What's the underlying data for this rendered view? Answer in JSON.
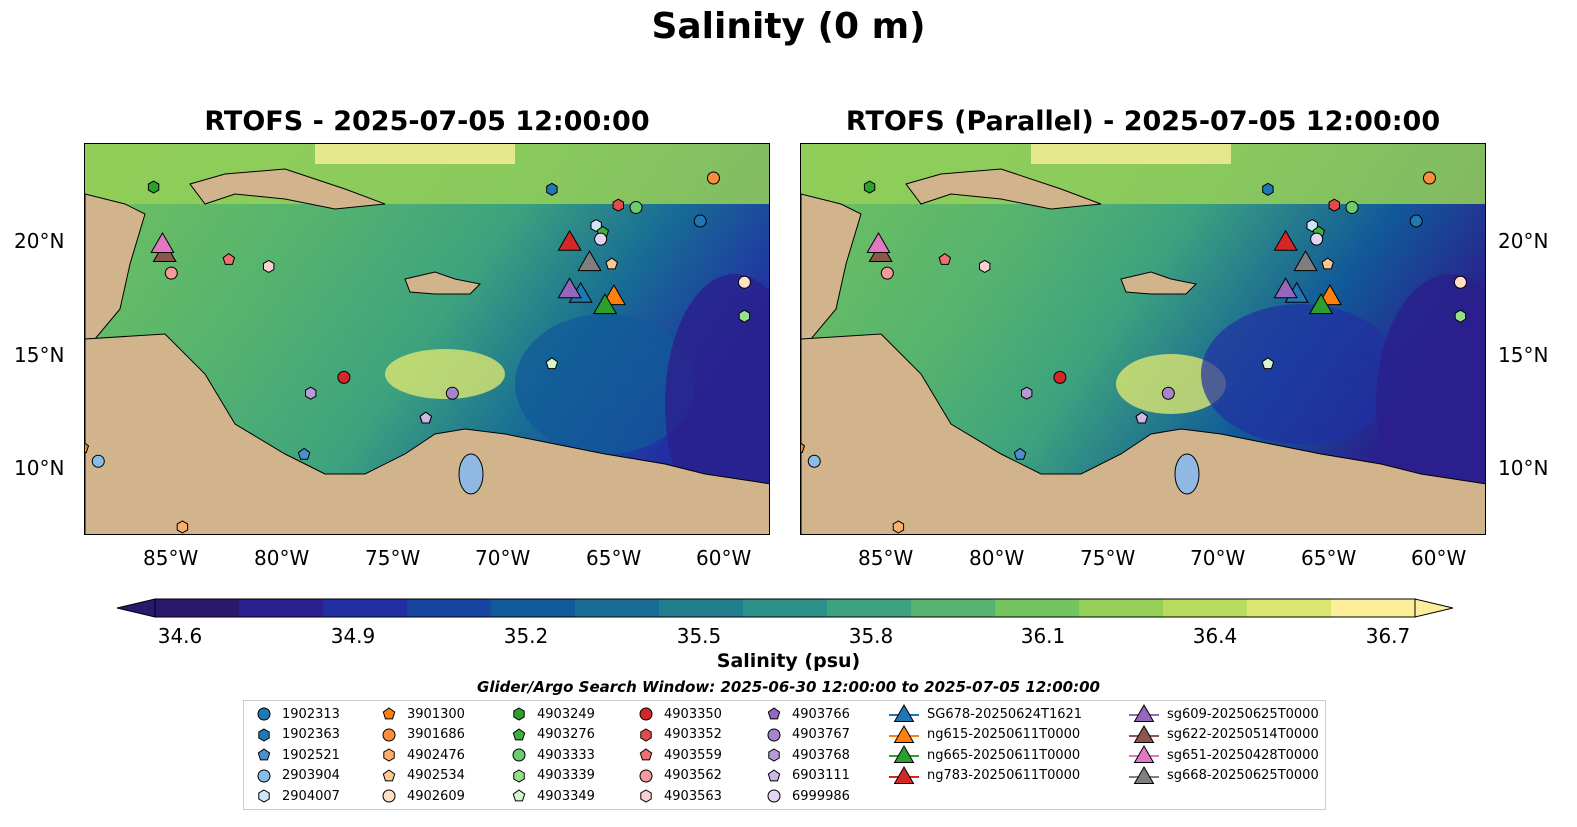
{
  "suptitle": "Salinity (0 m)",
  "panels": [
    {
      "title": "RTOFS - 2025-07-05 12:00:00"
    },
    {
      "title": "RTOFS (Parallel) - 2025-07-05 12:00:00"
    }
  ],
  "lon_ticks": [
    "85°W",
    "80°W",
    "75°W",
    "70°W",
    "65°W",
    "60°W"
  ],
  "lat_ticks": [
    "20°N",
    "15°N",
    "10°N"
  ],
  "colorbar": {
    "label": "Salinity (psu)",
    "ticks": [
      "34.6",
      "34.9",
      "35.2",
      "35.5",
      "35.8",
      "36.1",
      "36.4",
      "36.7"
    ],
    "colormap": "haline",
    "colors": [
      "#29186b",
      "#2a1f8c",
      "#212fa3",
      "#1545a1",
      "#115a99",
      "#176c95",
      "#217e8f",
      "#2d9089",
      "#3da27e",
      "#55b36f",
      "#73c35e",
      "#96d058",
      "#b9dc5f",
      "#dbe671",
      "#fdef9a"
    ]
  },
  "legend": {
    "title": "Glider/Argo Search Window: 2025-06-30 12:00:00 to 2025-07-05 12:00:00",
    "items": [
      {
        "label": "1902313",
        "color": "#1f77b4",
        "marker": "circle"
      },
      {
        "label": "1902363",
        "color": "#1f77b4",
        "marker": "hexagon"
      },
      {
        "label": "1902521",
        "color": "#4a90d0",
        "marker": "pentagon"
      },
      {
        "label": "2903904",
        "color": "#89bde6",
        "marker": "circle"
      },
      {
        "label": "2904007",
        "color": "#cfe6f7",
        "marker": "hexagon"
      },
      {
        "label": "3901300",
        "color": "#ff7f0e",
        "marker": "pentagon"
      },
      {
        "label": "3901686",
        "color": "#fd8d3c",
        "marker": "circle"
      },
      {
        "label": "4902476",
        "color": "#fdae6b",
        "marker": "hexagon"
      },
      {
        "label": "4902534",
        "color": "#fdc895",
        "marker": "pentagon"
      },
      {
        "label": "4902609",
        "color": "#fde0c5",
        "marker": "circle"
      },
      {
        "label": "4903249",
        "color": "#2ca02c",
        "marker": "hexagon"
      },
      {
        "label": "4903276",
        "color": "#3fb03f",
        "marker": "pentagon"
      },
      {
        "label": "4903333",
        "color": "#6dcc6d",
        "marker": "circle"
      },
      {
        "label": "4903339",
        "color": "#98df8a",
        "marker": "hexagon"
      },
      {
        "label": "4903349",
        "color": "#d4f5cc",
        "marker": "pentagon"
      },
      {
        "label": "4903350",
        "color": "#d62728",
        "marker": "circle"
      },
      {
        "label": "4903352",
        "color": "#e34a4a",
        "marker": "hexagon"
      },
      {
        "label": "4903559",
        "color": "#f07070",
        "marker": "pentagon"
      },
      {
        "label": "4903562",
        "color": "#f59a9a",
        "marker": "circle"
      },
      {
        "label": "4903563",
        "color": "#fcd0d0",
        "marker": "hexagon"
      },
      {
        "label": "4903766",
        "color": "#9467bd",
        "marker": "pentagon"
      },
      {
        "label": "4903767",
        "color": "#a785cc",
        "marker": "circle"
      },
      {
        "label": "4903768",
        "color": "#b99ad8",
        "marker": "hexagon"
      },
      {
        "label": "6903111",
        "color": "#cdb8e6",
        "marker": "pentagon"
      },
      {
        "label": "6999986",
        "color": "#e3d4f4",
        "marker": "circle"
      },
      {
        "label": "SG678-20250624T1621",
        "color": "#1f77b4",
        "marker": "triangle"
      },
      {
        "label": "ng615-20250611T0000",
        "color": "#ff7f0e",
        "marker": "triangle"
      },
      {
        "label": "ng665-20250611T0000",
        "color": "#2ca02c",
        "marker": "triangle"
      },
      {
        "label": "ng783-20250611T0000",
        "color": "#d62728",
        "marker": "triangle"
      },
      {
        "label": "sg609-20250625T0000",
        "color": "#9467bd",
        "marker": "triangle"
      },
      {
        "label": "sg622-20250514T0000",
        "color": "#8c564b",
        "marker": "triangle"
      },
      {
        "label": "sg651-20250428T0000",
        "color": "#e377c2",
        "marker": "triangle"
      },
      {
        "label": "sg668-20250625T0000",
        "color": "#7f7f7f",
        "marker": "triangle"
      }
    ]
  },
  "floats": [
    {
      "id": "1902313",
      "lon": -61.2,
      "lat": 20.9
    },
    {
      "id": "1902363",
      "lon": -67.9,
      "lat": 22.3
    },
    {
      "id": "1902521",
      "lon": -79.1,
      "lat": 10.6
    },
    {
      "id": "2903904",
      "lon": -88.4,
      "lat": 10.3
    },
    {
      "id": "2904007",
      "lon": -65.9,
      "lat": 20.7
    },
    {
      "id": "3901300",
      "lon": -89.1,
      "lat": 10.9
    },
    {
      "id": "3901686",
      "lon": -60.6,
      "lat": 22.8
    },
    {
      "id": "4902476",
      "lon": -84.6,
      "lat": 7.4
    },
    {
      "id": "4902534",
      "lon": -65.2,
      "lat": 19.0
    },
    {
      "id": "4902609",
      "lon": -59.2,
      "lat": 18.2
    },
    {
      "id": "4903249",
      "lon": -85.9,
      "lat": 22.4
    },
    {
      "id": "4903276",
      "lon": -65.6,
      "lat": 20.4
    },
    {
      "id": "4903333",
      "lon": -64.1,
      "lat": 21.5
    },
    {
      "id": "4903339",
      "lon": -59.2,
      "lat": 16.7
    },
    {
      "id": "4903349",
      "lon": -67.9,
      "lat": 14.6
    },
    {
      "id": "4903350",
      "lon": -77.3,
      "lat": 14.0
    },
    {
      "id": "4903352",
      "lon": -64.9,
      "lat": 21.6
    },
    {
      "id": "4903559",
      "lon": -82.5,
      "lat": 19.2
    },
    {
      "id": "4903562",
      "lon": -85.1,
      "lat": 18.6
    },
    {
      "id": "4903563",
      "lon": -80.7,
      "lat": 18.9
    },
    {
      "id": "4903766",
      "lon": -73.6,
      "lat": 12.2
    },
    {
      "id": "4903767",
      "lon": -72.4,
      "lat": 13.3
    },
    {
      "id": "4903768",
      "lon": -78.8,
      "lat": 13.3
    },
    {
      "id": "6903111",
      "lon": -73.6,
      "lat": 12.2
    },
    {
      "id": "6999986",
      "lon": -65.7,
      "lat": 20.1
    }
  ],
  "gliders": [
    {
      "id": "SG678-20250624T1621",
      "lon": -66.6,
      "lat": 17.6
    },
    {
      "id": "ng615-20250611T0000",
      "lon": -65.1,
      "lat": 17.5
    },
    {
      "id": "ng665-20250611T0000",
      "lon": -65.5,
      "lat": 17.1
    },
    {
      "id": "ng783-20250611T0000",
      "lon": -67.1,
      "lat": 19.9
    },
    {
      "id": "sg609-20250625T0000",
      "lon": -67.1,
      "lat": 17.8
    },
    {
      "id": "sg622-20250514T0000",
      "lon": -85.4,
      "lat": 19.4
    },
    {
      "id": "sg651-20250428T0000",
      "lon": -85.5,
      "lat": 19.8
    },
    {
      "id": "sg668-20250625T0000",
      "lon": -66.2,
      "lat": 19.0
    }
  ]
}
